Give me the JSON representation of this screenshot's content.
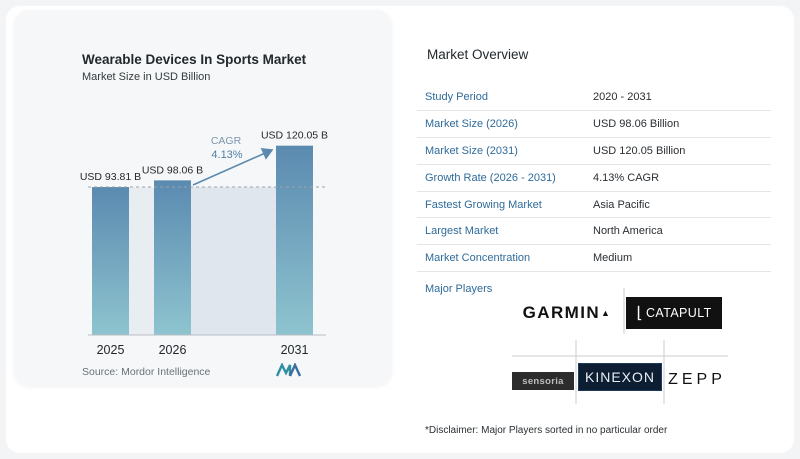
{
  "chart_title": "Wearable Devices In Sports Market",
  "chart_subtitle": "Market Size in USD Billion",
  "source": "Source: Mordor Intelligence",
  "cagr": {
    "label": "CAGR",
    "value": "4.13%"
  },
  "chart_data": {
    "type": "bar",
    "title": "Wearable Devices In Sports Market",
    "subtitle": "Market Size in USD Billion",
    "categories": [
      "2025",
      "2026",
      "2031"
    ],
    "values": [
      93.81,
      98.06,
      120.05
    ],
    "data_labels": [
      "USD 93.81 B",
      "USD 98.06 B",
      "USD 120.05 B"
    ],
    "annotation": "CAGR 4.13%",
    "colors": {
      "bar_top": "#5b8ab0",
      "bar_bottom": "#8ec4cf",
      "band": "#dfe6ee",
      "arrow": "#5b8ab0"
    }
  },
  "overview": {
    "title": "Market Overview",
    "rows": [
      {
        "key": "Study Period",
        "value": "2020 - 2031"
      },
      {
        "key": "Market Size (2026)",
        "value": "USD 98.06 Billion"
      },
      {
        "key": "Market Size (2031)",
        "value": "USD 120.05 Billion"
      },
      {
        "key": "Growth Rate (2026 - 2031)",
        "value": "4.13% CAGR"
      },
      {
        "key": "Fastest Growing Market",
        "value": "Asia Pacific"
      },
      {
        "key": "Largest Market",
        "value": "North America"
      },
      {
        "key": "Market Concentration",
        "value": "Medium"
      }
    ]
  },
  "major_players": {
    "title": "Major Players",
    "players": [
      "GARMIN",
      "CATAPULT",
      "sensoria",
      "KINEXON",
      "ZEPP"
    ]
  },
  "disclaimer": "*Disclaimer: Major Players sorted in no particular order"
}
